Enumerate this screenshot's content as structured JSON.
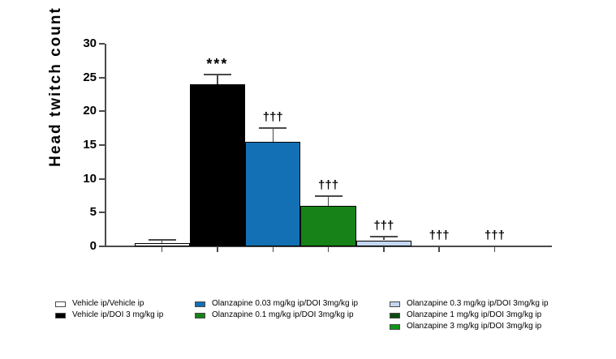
{
  "chart_data": {
    "type": "bar",
    "title": "",
    "xlabel": "",
    "ylabel": "Head twitch count",
    "ylim": [
      0,
      30
    ],
    "yticks": [
      0,
      5,
      10,
      15,
      20,
      25,
      30
    ],
    "grid": false,
    "legend_position": "bottom",
    "bars": [
      {
        "label": "Vehicle ip/Vehicle ip",
        "value": 0.5,
        "sem": 0.5,
        "color": "#ffffff",
        "sig": ""
      },
      {
        "label": "Vehicle ip/DOI 3 mg/kg ip",
        "value": 24.0,
        "sem": 1.5,
        "color": "#000000",
        "sig": "***"
      },
      {
        "label": "Olanzapine 0.03 mg/kg ip/DOI 3mg/kg ip",
        "value": 15.5,
        "sem": 2.0,
        "color": "#1470b4",
        "sig": "†††"
      },
      {
        "label": "Olanzapine 0.1 mg/kg ip/DOI 3mg/kg ip",
        "value": 6.0,
        "sem": 1.4,
        "color": "#178217",
        "sig": "†††"
      },
      {
        "label": "Olanzapine 0.3 mg/kg ip/DOI 3mg/kg ip",
        "value": 0.9,
        "sem": 0.5,
        "color": "#c3d6f0",
        "sig": "†††"
      },
      {
        "label": "Olanzapine 1 mg/kg ip/DOI 3mg/kg ip",
        "value": 0,
        "sem": 0,
        "color": "#0a4a10",
        "sig": "†††"
      },
      {
        "label": "Olanzapine 3 mg/kg ip/DOI 3mg/kg ip",
        "value": 0,
        "sem": 0,
        "color": "#129417",
        "sig": "†††"
      }
    ],
    "annotations": [
      "***",
      "†††"
    ]
  },
  "legend": {
    "columns": [
      [
        0,
        1
      ],
      [
        2,
        3
      ],
      [
        4,
        5,
        6
      ]
    ]
  },
  "colors": {
    "axis": "#4a4a4a",
    "text": "#000000",
    "background": "#ffffff"
  }
}
